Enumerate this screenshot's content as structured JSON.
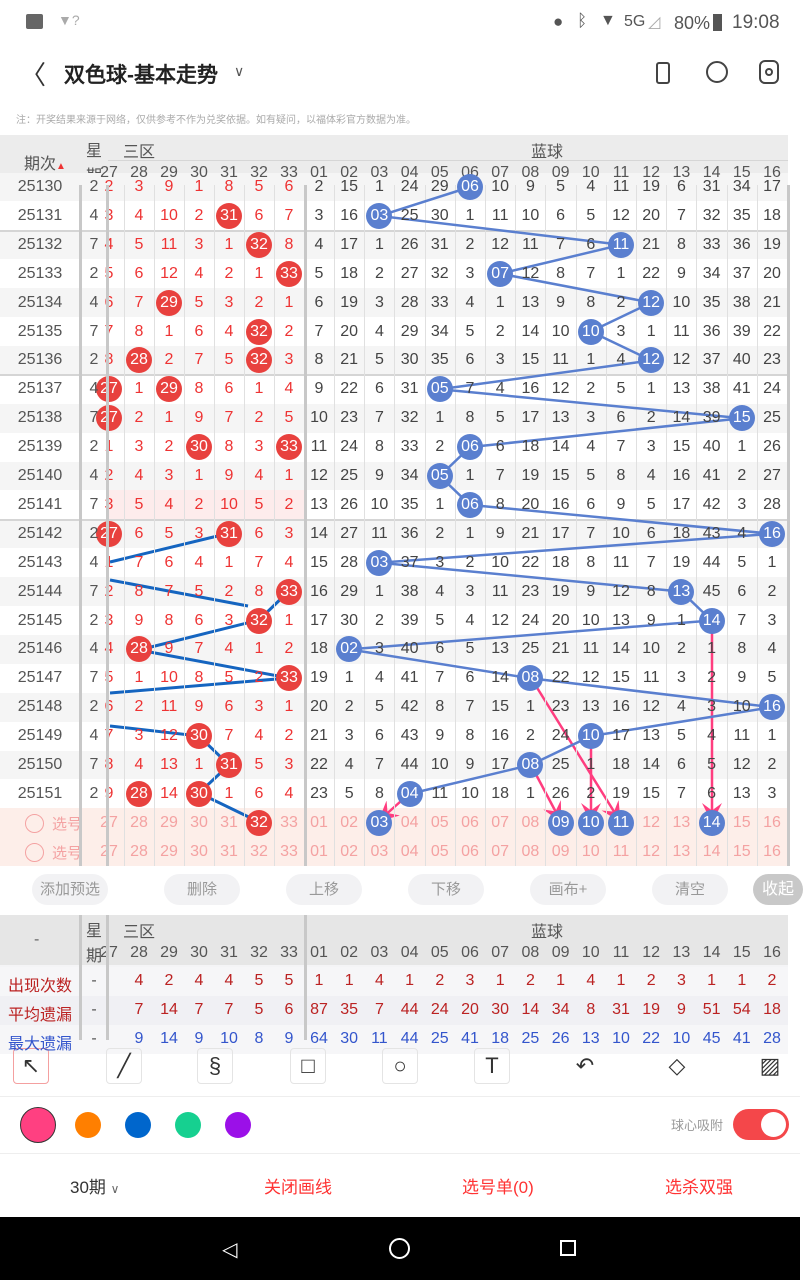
{
  "status": {
    "time": "19:08",
    "battery": "80%",
    "network": "5G"
  },
  "header": {
    "title": "双色球-基本走势"
  },
  "notice": "注：开奖结果来源于网络，仅供参考不作为兑奖依据。如有疑问，以福体彩官方数据为准。",
  "table": {
    "period_label": "期次",
    "weekday_label_1": "星",
    "weekday_label_2": "期",
    "red_zone_label": "三区",
    "blue_zone_label": "蓝球",
    "red_cols": [
      "27",
      "28",
      "29",
      "30",
      "31",
      "32",
      "33"
    ],
    "blue_cols": [
      "01",
      "02",
      "03",
      "04",
      "05",
      "06",
      "07",
      "08",
      "09",
      "10",
      "11",
      "12",
      "13",
      "14",
      "15",
      "16"
    ],
    "rows": [
      {
        "period": "25130",
        "weekday": "2",
        "red": [
          "2",
          "3",
          "9",
          "1",
          "8",
          "5",
          "6"
        ],
        "blue": [
          "2",
          "15",
          "1",
          "24",
          "29",
          "06",
          "10",
          "9",
          "5",
          "4",
          "11",
          "19",
          "6",
          "31",
          "34",
          "17"
        ],
        "red_hits": [],
        "blue_hit": "06"
      },
      {
        "period": "25131",
        "weekday": "4",
        "red": [
          "3",
          "4",
          "10",
          "2",
          "31",
          "6",
          "7"
        ],
        "blue": [
          "3",
          "16",
          "03",
          "25",
          "30",
          "1",
          "11",
          "10",
          "6",
          "5",
          "12",
          "20",
          "7",
          "32",
          "35",
          "18"
        ],
        "red_hits": [
          "31"
        ],
        "blue_hit": "03"
      },
      {
        "period": "25132",
        "weekday": "7",
        "red": [
          "4",
          "5",
          "11",
          "3",
          "1",
          "32",
          "8"
        ],
        "blue": [
          "4",
          "17",
          "1",
          "26",
          "31",
          "2",
          "12",
          "11",
          "7",
          "6",
          "11",
          "21",
          "8",
          "33",
          "36",
          "19"
        ],
        "red_hits": [
          "32"
        ],
        "blue_hit": "11"
      },
      {
        "period": "25133",
        "weekday": "2",
        "red": [
          "5",
          "6",
          "12",
          "4",
          "2",
          "1",
          "33"
        ],
        "blue": [
          "5",
          "18",
          "2",
          "27",
          "32",
          "3",
          "07",
          "12",
          "8",
          "7",
          "1",
          "22",
          "9",
          "34",
          "37",
          "20"
        ],
        "red_hits": [
          "33"
        ],
        "blue_hit": "07"
      },
      {
        "period": "25134",
        "weekday": "4",
        "red": [
          "6",
          "7",
          "29",
          "5",
          "3",
          "2",
          "1"
        ],
        "blue": [
          "6",
          "19",
          "3",
          "28",
          "33",
          "4",
          "1",
          "13",
          "9",
          "8",
          "2",
          "12",
          "10",
          "35",
          "38",
          "21"
        ],
        "red_hits": [
          "29"
        ],
        "blue_hit": "12"
      },
      {
        "period": "25135",
        "weekday": "7",
        "red": [
          "7",
          "8",
          "1",
          "6",
          "4",
          "32",
          "2"
        ],
        "blue": [
          "7",
          "20",
          "4",
          "29",
          "34",
          "5",
          "2",
          "14",
          "10",
          "10",
          "3",
          "1",
          "11",
          "36",
          "39",
          "22"
        ],
        "red_hits": [
          "32"
        ],
        "blue_hit": "10"
      },
      {
        "period": "25136",
        "weekday": "2",
        "red": [
          "8",
          "28",
          "2",
          "7",
          "5",
          "32",
          "3"
        ],
        "blue": [
          "8",
          "21",
          "5",
          "30",
          "35",
          "6",
          "3",
          "15",
          "11",
          "1",
          "4",
          "12",
          "12",
          "37",
          "40",
          "23"
        ],
        "red_hits": [
          "28",
          "32"
        ],
        "blue_hit": "12"
      },
      {
        "period": "25137",
        "weekday": "4",
        "red": [
          "27",
          "1",
          "29",
          "8",
          "6",
          "1",
          "4"
        ],
        "blue": [
          "9",
          "22",
          "6",
          "31",
          "05",
          "7",
          "4",
          "16",
          "12",
          "2",
          "5",
          "1",
          "13",
          "38",
          "41",
          "24"
        ],
        "red_hits": [
          "27",
          "29"
        ],
        "blue_hit": "05"
      },
      {
        "period": "25138",
        "weekday": "7",
        "red": [
          "27",
          "2",
          "1",
          "9",
          "7",
          "2",
          "5"
        ],
        "blue": [
          "10",
          "23",
          "7",
          "32",
          "1",
          "8",
          "5",
          "17",
          "13",
          "3",
          "6",
          "2",
          "14",
          "39",
          "15",
          "25"
        ],
        "red_hits": [
          "27"
        ],
        "blue_hit": "15"
      },
      {
        "period": "25139",
        "weekday": "2",
        "red": [
          "1",
          "3",
          "2",
          "30",
          "8",
          "3",
          "33"
        ],
        "blue": [
          "11",
          "24",
          "8",
          "33",
          "2",
          "06",
          "6",
          "18",
          "14",
          "4",
          "7",
          "3",
          "15",
          "40",
          "1",
          "26"
        ],
        "red_hits": [
          "30",
          "33"
        ],
        "blue_hit": "06"
      },
      {
        "period": "25140",
        "weekday": "4",
        "red": [
          "2",
          "4",
          "3",
          "1",
          "9",
          "4",
          "1"
        ],
        "blue": [
          "12",
          "25",
          "9",
          "34",
          "05",
          "1",
          "7",
          "19",
          "15",
          "5",
          "8",
          "4",
          "16",
          "41",
          "2",
          "27"
        ],
        "red_hits": [],
        "blue_hit": "05"
      },
      {
        "period": "25141",
        "weekday": "7",
        "red": [
          "3",
          "5",
          "4",
          "2",
          "10",
          "5",
          "2"
        ],
        "blue": [
          "13",
          "26",
          "10",
          "35",
          "1",
          "06",
          "8",
          "20",
          "16",
          "6",
          "9",
          "5",
          "17",
          "42",
          "3",
          "28"
        ],
        "red_hits": [],
        "blue_hit": "06"
      },
      {
        "period": "25142",
        "weekday": "2",
        "red": [
          "27",
          "6",
          "5",
          "3",
          "31",
          "6",
          "3"
        ],
        "blue": [
          "14",
          "27",
          "11",
          "36",
          "2",
          "1",
          "9",
          "21",
          "17",
          "7",
          "10",
          "6",
          "18",
          "43",
          "4",
          "16"
        ],
        "red_hits": [
          "27",
          "31"
        ],
        "blue_hit": "16"
      },
      {
        "period": "25143",
        "weekday": "4",
        "red": [
          "1",
          "7",
          "6",
          "4",
          "1",
          "7",
          "4"
        ],
        "blue": [
          "15",
          "28",
          "03",
          "37",
          "3",
          "2",
          "10",
          "22",
          "18",
          "8",
          "11",
          "7",
          "19",
          "44",
          "5",
          "1"
        ],
        "red_hits": [],
        "blue_hit": "03"
      },
      {
        "period": "25144",
        "weekday": "7",
        "red": [
          "2",
          "8",
          "7",
          "5",
          "2",
          "8",
          "33"
        ],
        "blue": [
          "16",
          "29",
          "1",
          "38",
          "4",
          "3",
          "11",
          "23",
          "19",
          "9",
          "12",
          "8",
          "13",
          "45",
          "6",
          "2"
        ],
        "red_hits": [
          "33"
        ],
        "blue_hit": "13"
      },
      {
        "period": "25145",
        "weekday": "2",
        "red": [
          "3",
          "9",
          "8",
          "6",
          "3",
          "32",
          "1"
        ],
        "blue": [
          "17",
          "30",
          "2",
          "39",
          "5",
          "4",
          "12",
          "24",
          "20",
          "10",
          "13",
          "9",
          "1",
          "14",
          "7",
          "3"
        ],
        "red_hits": [
          "32"
        ],
        "blue_hit": "14"
      },
      {
        "period": "25146",
        "weekday": "4",
        "red": [
          "4",
          "28",
          "9",
          "7",
          "4",
          "1",
          "2"
        ],
        "blue": [
          "18",
          "02",
          "3",
          "40",
          "6",
          "5",
          "13",
          "25",
          "21",
          "11",
          "14",
          "10",
          "2",
          "1",
          "8",
          "4"
        ],
        "red_hits": [
          "28"
        ],
        "blue_hit": "02"
      },
      {
        "period": "25147",
        "weekday": "7",
        "red": [
          "5",
          "1",
          "10",
          "8",
          "5",
          "2",
          "33"
        ],
        "blue": [
          "19",
          "1",
          "4",
          "41",
          "7",
          "6",
          "14",
          "08",
          "22",
          "12",
          "15",
          "11",
          "3",
          "2",
          "9",
          "5"
        ],
        "red_hits": [
          "33"
        ],
        "blue_hit": "08"
      },
      {
        "period": "25148",
        "weekday": "2",
        "red": [
          "6",
          "2",
          "11",
          "9",
          "6",
          "3",
          "1"
        ],
        "blue": [
          "20",
          "2",
          "5",
          "42",
          "8",
          "7",
          "15",
          "1",
          "23",
          "13",
          "16",
          "12",
          "4",
          "3",
          "10",
          "16"
        ],
        "red_hits": [],
        "blue_hit": "16"
      },
      {
        "period": "25149",
        "weekday": "4",
        "red": [
          "7",
          "3",
          "12",
          "30",
          "7",
          "4",
          "2"
        ],
        "blue": [
          "21",
          "3",
          "6",
          "43",
          "9",
          "8",
          "16",
          "2",
          "24",
          "10",
          "17",
          "13",
          "5",
          "4",
          "11",
          "1"
        ],
        "red_hits": [
          "30"
        ],
        "blue_hit": "10"
      },
      {
        "period": "25150",
        "weekday": "7",
        "red": [
          "8",
          "4",
          "13",
          "1",
          "31",
          "5",
          "3"
        ],
        "blue": [
          "22",
          "4",
          "7",
          "44",
          "10",
          "9",
          "17",
          "08",
          "25",
          "1",
          "18",
          "14",
          "6",
          "5",
          "12",
          "2"
        ],
        "red_hits": [
          "31"
        ],
        "blue_hit": "08"
      },
      {
        "period": "25151",
        "weekday": "2",
        "red": [
          "9",
          "28",
          "14",
          "30",
          "1",
          "6",
          "4"
        ],
        "blue": [
          "23",
          "5",
          "8",
          "04",
          "11",
          "10",
          "18",
          "1",
          "26",
          "2",
          "19",
          "15",
          "7",
          "6",
          "13",
          "3"
        ],
        "red_hits": [
          "28",
          "30"
        ],
        "blue_hit": "04"
      }
    ],
    "select_rows": [
      {
        "label": "选号",
        "red_selected": [
          "32"
        ],
        "blue_selected": [
          "03",
          "09",
          "10",
          "11",
          "14"
        ]
      },
      {
        "label": "选号",
        "red_selected": [],
        "blue_selected": []
      }
    ]
  },
  "actions": [
    "添加预选",
    "删除",
    "上移",
    "下移",
    "画布+",
    "清空"
  ],
  "collapse_label": "收起",
  "stats": {
    "corner": "-",
    "rows": [
      {
        "label": "出现次数",
        "weekday": "-",
        "red": [
          "",
          "4",
          "2",
          "4",
          "4",
          "5",
          "5"
        ],
        "blue": [
          "1",
          "1",
          "4",
          "1",
          "2",
          "3",
          "1",
          "2",
          "1",
          "4",
          "1",
          "2",
          "3",
          "1",
          "1",
          "2"
        ]
      },
      {
        "label": "平均遗漏",
        "weekday": "-",
        "red": [
          "",
          "7",
          "14",
          "7",
          "7",
          "5",
          "6"
        ],
        "blue": [
          "87",
          "35",
          "7",
          "44",
          "24",
          "20",
          "30",
          "14",
          "34",
          "8",
          "31",
          "19",
          "9",
          "51",
          "54",
          "18"
        ]
      },
      {
        "label": "最大遗漏",
        "weekday": "-",
        "red": [
          "",
          "9",
          "14",
          "9",
          "10",
          "8",
          "9"
        ],
        "blue": [
          "64",
          "30",
          "11",
          "44",
          "25",
          "41",
          "18",
          "25",
          "26",
          "13",
          "10",
          "22",
          "10",
          "45",
          "41",
          "28"
        ]
      }
    ]
  },
  "tools": [
    "select-arrow",
    "line",
    "curve",
    "rectangle",
    "circle",
    "text",
    "undo",
    "eraser",
    "clear-brush"
  ],
  "colors": [
    "#ff4081",
    "#ff7f00",
    "#0066cc",
    "#16d090",
    "#9b10e8"
  ],
  "snap_label": "球心吸附",
  "snap_on": true,
  "bottom": {
    "period": "30期",
    "close_draw": "关闭画线",
    "picks": "选号单(0)",
    "kill": "选杀双强"
  }
}
